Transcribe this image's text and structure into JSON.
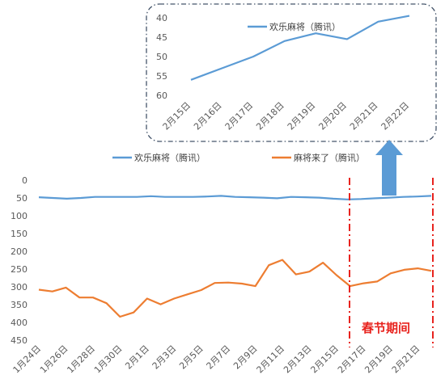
{
  "chart_data": [
    {
      "type": "line",
      "title": "",
      "xlabel": "",
      "ylabel": "",
      "y_inverted": true,
      "ylim": [
        60,
        40
      ],
      "yticks": [
        "40",
        "45",
        "50",
        "55",
        "60"
      ],
      "grid": false,
      "legend": "top",
      "categories": [
        "2月15日",
        "2月16日",
        "2月17日",
        "2月18日",
        "2月19日",
        "2月20日",
        "2月21日",
        "2月22日"
      ],
      "series": [
        {
          "name": "欢乐麻将（腾讯）",
          "color": "#5b9bd5",
          "values": [
            56,
            53,
            50,
            46,
            44,
            45.5,
            41,
            39.5
          ]
        }
      ]
    },
    {
      "type": "line",
      "title": "",
      "xlabel": "",
      "ylabel": "",
      "y_inverted": true,
      "ylim": [
        450,
        0
      ],
      "yticks": [
        "0",
        "50",
        "100",
        "150",
        "200",
        "250",
        "300",
        "350",
        "400",
        "450"
      ],
      "grid": false,
      "legend": "top",
      "xticks": [
        "1月24日",
        "1月26日",
        "1月28日",
        "1月30日",
        "2月1日",
        "2月3日",
        "2月5日",
        "2月7日",
        "2月9日",
        "2月11日",
        "2月13日",
        "2月15日",
        "2月17日",
        "2月19日",
        "2月21日"
      ],
      "annotation": {
        "text": "春节期间",
        "color": "#e8231e",
        "from": "2月16日",
        "to": "2月22日"
      },
      "series": [
        {
          "name": "欢乐麻将（腾讯）",
          "color": "#5b9bd5",
          "values": [
            48,
            50,
            52,
            50,
            47,
            47,
            47,
            47,
            45,
            47,
            47,
            47,
            46,
            44,
            47,
            48,
            49,
            51,
            47,
            48,
            49,
            52,
            54,
            53,
            51,
            49,
            47,
            46,
            44
          ]
        },
        {
          "name": "麻将来了（腾讯）",
          "color": "#ed7d31",
          "values": [
            308,
            313,
            302,
            330,
            330,
            346,
            384,
            372,
            333,
            349,
            333,
            321,
            309,
            289,
            288,
            291,
            298,
            239,
            224,
            265,
            257,
            232,
            267,
            298,
            290,
            285,
            262,
            252,
            248,
            255
          ]
        }
      ]
    }
  ]
}
